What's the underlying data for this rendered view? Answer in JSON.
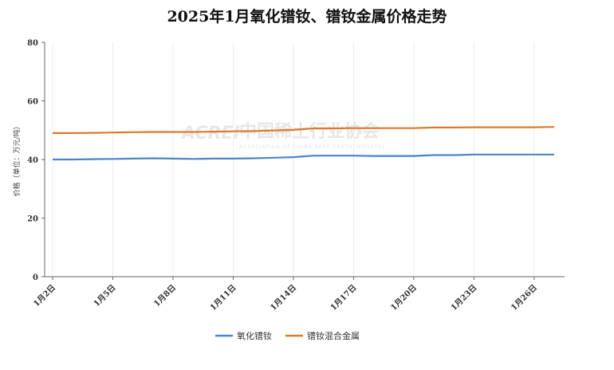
{
  "chart_data": {
    "type": "line",
    "title": "2025年1月氧化镨钕、镨钕金属价格走势",
    "ylabel": "价格（单位：万元/吨）",
    "ylim": [
      0,
      80
    ],
    "yticks": [
      0,
      20,
      40,
      60,
      80
    ],
    "categories": [
      "1月2日",
      "1月5日",
      "1月8日",
      "1月11日",
      "1月14日",
      "1月17日",
      "1月20日",
      "1月23日",
      "1月26日"
    ],
    "x": [
      "1月2日",
      "1月3日",
      "1月4日",
      "1月5日",
      "1月6日",
      "1月7日",
      "1月8日",
      "1月9日",
      "1月10日",
      "1月11日",
      "1月12日",
      "1月13日",
      "1月14日",
      "1月15日",
      "1月16日",
      "1月17日",
      "1月18日",
      "1月19日",
      "1月20日",
      "1月21日",
      "1月22日",
      "1月23日",
      "1月24日",
      "1月25日",
      "1月26日",
      "1月27日"
    ],
    "series": [
      {
        "name": "氧化镨钕",
        "color": "#4a86c8",
        "values": [
          40.0,
          40.0,
          40.1,
          40.2,
          40.3,
          40.4,
          40.3,
          40.2,
          40.3,
          40.3,
          40.4,
          40.6,
          40.8,
          41.3,
          41.3,
          41.3,
          41.2,
          41.2,
          41.2,
          41.5,
          41.5,
          41.7,
          41.7,
          41.7,
          41.7,
          41.7
        ]
      },
      {
        "name": "镨钕混合金属",
        "color": "#e0782a",
        "values": [
          49.0,
          49.0,
          49.1,
          49.2,
          49.3,
          49.4,
          49.4,
          49.4,
          49.5,
          49.6,
          49.7,
          49.9,
          50.1,
          50.6,
          50.6,
          50.7,
          50.7,
          50.7,
          50.7,
          50.9,
          50.9,
          51.0,
          51.0,
          51.0,
          51.0,
          51.1
        ]
      }
    ],
    "grid": "vertical",
    "legend": "bottom-center"
  },
  "watermark": {
    "logo": "ACREI",
    "cn": "中国稀土行业协会",
    "en": "ASSOCIATION OF CHINA RARE EARTH INDUSTRY"
  }
}
